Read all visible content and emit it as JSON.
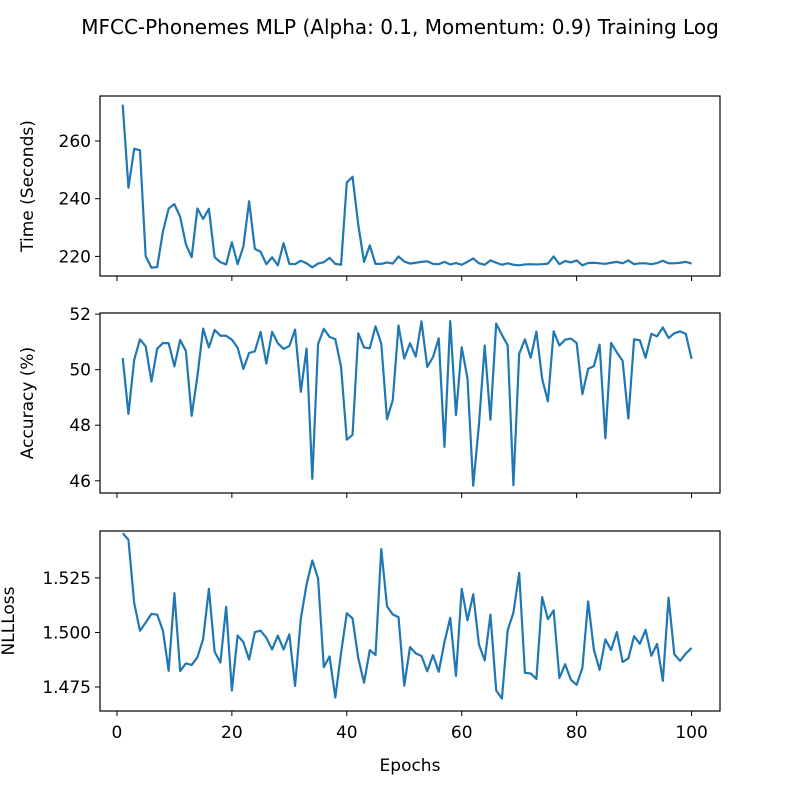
{
  "figure": {
    "title": "MFCC-Phonemes MLP (Alpha: 0.1, Momentum: 0.9) Training Log"
  },
  "chart_data": [
    {
      "type": "line",
      "title": "",
      "xlabel": "",
      "ylabel": "Time (Seconds)",
      "xlim": [
        -2.95,
        104.95
      ],
      "ylim": [
        213.2,
        275.6
      ],
      "xticks": [
        0,
        20,
        40,
        60,
        80,
        100
      ],
      "yticks": [
        220,
        240,
        260
      ],
      "ytick_labels": [
        "220",
        "240",
        "260"
      ],
      "show_xtick_labels": false,
      "grid": false,
      "color": "#1f77b4",
      "series": [
        {
          "x": [
            1,
            2,
            3,
            4,
            5,
            6,
            7,
            8,
            9,
            10,
            11,
            12,
            13,
            14,
            15,
            16,
            17,
            18,
            19,
            20,
            21,
            22,
            23,
            24,
            25,
            26,
            27,
            28,
            29,
            30,
            31,
            32,
            33,
            34,
            35,
            36,
            37,
            38,
            39,
            40,
            41,
            42,
            43,
            44,
            45,
            46,
            47,
            48,
            49,
            50,
            51,
            52,
            53,
            54,
            55,
            56,
            57,
            58,
            59,
            60,
            61,
            62,
            63,
            64,
            65,
            66,
            67,
            68,
            69,
            70,
            71,
            72,
            73,
            74,
            75,
            76,
            77,
            78,
            79,
            80,
            81,
            82,
            83,
            84,
            85,
            86,
            87,
            88,
            89,
            90,
            91,
            92,
            93,
            94,
            95,
            96,
            97,
            98,
            99,
            100
          ],
          "y": [
            272.6,
            243.8,
            257.3,
            256.8,
            220.1,
            216.1,
            216.3,
            228.6,
            236.6,
            238.1,
            233.7,
            224.2,
            219.7,
            236.6,
            233.0,
            236.5,
            219.7,
            218.0,
            217.2,
            224.9,
            217.3,
            223.4,
            239.1,
            222.6,
            221.6,
            217.3,
            219.7,
            216.9,
            224.6,
            217.4,
            217.3,
            218.5,
            217.6,
            216.2,
            217.5,
            218.0,
            219.5,
            217.4,
            217.1,
            245.6,
            247.6,
            230.9,
            218.1,
            223.8,
            217.4,
            217.4,
            217.9,
            217.5,
            220.0,
            218.2,
            217.5,
            217.8,
            218.1,
            218.3,
            217.4,
            217.3,
            218.1,
            217.2,
            217.7,
            217.1,
            218.1,
            219.3,
            217.6,
            217.1,
            218.6,
            217.8,
            217.1,
            217.6,
            217.1,
            216.9,
            217.2,
            217.3,
            217.2,
            217.3,
            217.5,
            220.0,
            217.3,
            218.4,
            217.9,
            218.6,
            216.9,
            217.7,
            217.8,
            217.6,
            217.4,
            217.8,
            218.1,
            217.6,
            218.6,
            217.3,
            217.6,
            217.6,
            217.3,
            217.7,
            218.5,
            217.6,
            217.6,
            217.8,
            218.1,
            217.5
          ]
        }
      ]
    },
    {
      "type": "line",
      "title": "",
      "xlabel": "",
      "ylabel": "Accuracy (%)",
      "xlim": [
        -2.95,
        104.95
      ],
      "ylim": [
        45.56,
        52.04
      ],
      "xticks": [
        0,
        20,
        40,
        60,
        80,
        100
      ],
      "yticks": [
        46,
        48,
        50,
        52
      ],
      "ytick_labels": [
        "46",
        "48",
        "50",
        "52"
      ],
      "show_xtick_labels": false,
      "grid": false,
      "color": "#1f77b4",
      "series": [
        {
          "x": [
            1,
            2,
            3,
            4,
            5,
            6,
            7,
            8,
            9,
            10,
            11,
            12,
            13,
            14,
            15,
            16,
            17,
            18,
            19,
            20,
            21,
            22,
            23,
            24,
            25,
            26,
            27,
            28,
            29,
            30,
            31,
            32,
            33,
            34,
            35,
            36,
            37,
            38,
            39,
            40,
            41,
            42,
            43,
            44,
            45,
            46,
            47,
            48,
            49,
            50,
            51,
            52,
            53,
            54,
            55,
            56,
            57,
            58,
            59,
            60,
            61,
            62,
            63,
            64,
            65,
            66,
            67,
            68,
            69,
            70,
            71,
            72,
            73,
            74,
            75,
            76,
            77,
            78,
            79,
            80,
            81,
            82,
            83,
            84,
            85,
            86,
            87,
            88,
            89,
            90,
            91,
            92,
            93,
            94,
            95,
            96,
            97,
            98,
            99,
            100
          ],
          "y": [
            50.42,
            48.41,
            50.35,
            51.09,
            50.84,
            49.57,
            50.75,
            50.96,
            50.95,
            50.12,
            51.07,
            50.67,
            48.34,
            49.76,
            51.48,
            50.8,
            51.43,
            51.22,
            51.22,
            51.08,
            50.79,
            50.03,
            50.6,
            50.66,
            51.36,
            50.22,
            51.36,
            50.95,
            50.75,
            50.85,
            51.44,
            49.2,
            50.76,
            46.07,
            50.92,
            51.47,
            51.18,
            51.1,
            50.1,
            47.48,
            47.65,
            51.31,
            50.8,
            50.77,
            51.56,
            50.94,
            48.22,
            48.9,
            51.59,
            50.4,
            50.95,
            50.47,
            51.74,
            50.1,
            50.45,
            51.13,
            47.22,
            51.75,
            48.37,
            50.81,
            49.69,
            45.82,
            48.03,
            50.87,
            48.2,
            51.66,
            51.25,
            50.88,
            45.84,
            50.57,
            51.09,
            50.43,
            51.37,
            49.67,
            48.86,
            51.38,
            50.87,
            51.08,
            51.12,
            50.96,
            49.12,
            50.03,
            50.13,
            50.9,
            47.53,
            50.96,
            50.62,
            50.32,
            48.24,
            51.09,
            51.06,
            50.43,
            51.29,
            51.2,
            51.52,
            51.14,
            51.31,
            51.38,
            51.29,
            50.39
          ]
        }
      ]
    },
    {
      "type": "line",
      "title": "",
      "xlabel": "Epochs",
      "ylabel": "NLLLoss",
      "xlim": [
        -2.95,
        104.95
      ],
      "ylim": [
        1.464,
        1.5465
      ],
      "xticks": [
        0,
        20,
        40,
        60,
        80,
        100
      ],
      "xtick_labels": [
        "0",
        "20",
        "40",
        "60",
        "80",
        "100"
      ],
      "yticks": [
        1.475,
        1.5,
        1.525
      ],
      "ytick_labels": [
        "1.475",
        "1.500",
        "1.525"
      ],
      "show_xtick_labels": true,
      "grid": false,
      "color": "#1f77b4",
      "series": [
        {
          "x": [
            1,
            2,
            3,
            4,
            5,
            6,
            7,
            8,
            9,
            10,
            11,
            12,
            13,
            14,
            15,
            16,
            17,
            18,
            19,
            20,
            21,
            22,
            23,
            24,
            25,
            26,
            27,
            28,
            29,
            30,
            31,
            32,
            33,
            34,
            35,
            36,
            37,
            38,
            39,
            40,
            41,
            42,
            43,
            44,
            45,
            46,
            47,
            48,
            49,
            50,
            51,
            52,
            53,
            54,
            55,
            56,
            57,
            58,
            59,
            60,
            61,
            62,
            63,
            64,
            65,
            66,
            67,
            68,
            69,
            70,
            71,
            72,
            73,
            74,
            75,
            76,
            77,
            78,
            79,
            80,
            81,
            82,
            83,
            84,
            85,
            86,
            87,
            88,
            89,
            90,
            91,
            92,
            93,
            94,
            95,
            96,
            97,
            98,
            99,
            100
          ],
          "y": [
            1.5455,
            1.5425,
            1.5135,
            1.5008,
            1.5045,
            1.5085,
            1.5082,
            1.5008,
            1.4824,
            1.518,
            1.4823,
            1.4858,
            1.4851,
            1.4886,
            1.497,
            1.52,
            1.4912,
            1.4862,
            1.5117,
            1.4734,
            1.4986,
            1.4956,
            1.4876,
            1.5002,
            1.5008,
            1.4976,
            1.4922,
            1.4985,
            1.4922,
            1.4991,
            1.4755,
            1.5063,
            1.522,
            1.533,
            1.5248,
            1.4841,
            1.489,
            1.4702,
            1.4906,
            1.5088,
            1.5064,
            1.4881,
            1.477,
            1.4919,
            1.4897,
            1.5382,
            1.512,
            1.5082,
            1.507,
            1.4756,
            1.4933,
            1.4904,
            1.4892,
            1.4822,
            1.4896,
            1.482,
            1.4956,
            1.5067,
            1.4801,
            1.52,
            1.5056,
            1.5175,
            1.4945,
            1.4872,
            1.5082,
            1.4734,
            1.4697,
            1.501,
            1.5091,
            1.5273,
            1.4815,
            1.4812,
            1.4787,
            1.5162,
            1.5061,
            1.5101,
            1.4791,
            1.4854,
            1.4783,
            1.476,
            1.4837,
            1.5142,
            1.4921,
            1.4828,
            1.4968,
            1.492,
            1.5002,
            1.4865,
            1.4881,
            1.4983,
            1.4948,
            1.5012,
            1.4893,
            1.4947,
            1.4778,
            1.516,
            1.49,
            1.487,
            1.4903,
            1.4929
          ]
        }
      ]
    }
  ]
}
